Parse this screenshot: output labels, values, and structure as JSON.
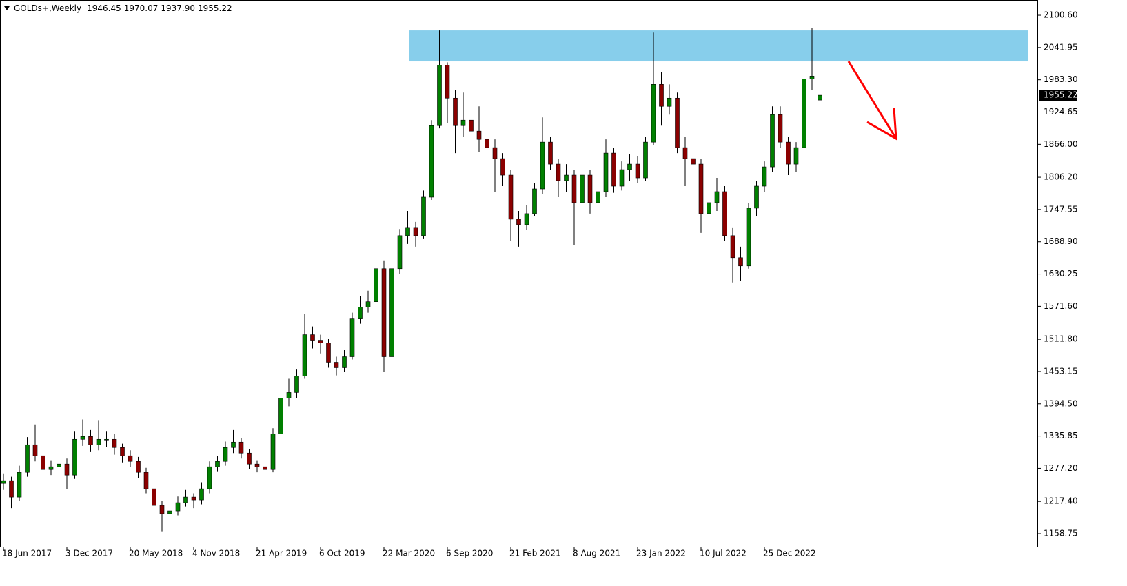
{
  "chart_data": {
    "type": "candlestick",
    "title": "GOLDs+,Weekly",
    "header_values": [
      "1946.45",
      "1970.07",
      "1937.90",
      "1955.22"
    ],
    "categories": [
      "18 Jun 2017",
      null,
      null,
      null,
      null,
      null,
      null,
      null,
      "3 Dec 2017",
      null,
      null,
      null,
      null,
      null,
      null,
      null,
      "20 May 2018",
      null,
      null,
      null,
      null,
      null,
      null,
      null,
      "4 Nov 2018",
      null,
      null,
      null,
      null,
      null,
      null,
      null,
      "21 Apr 2019",
      null,
      null,
      null,
      null,
      null,
      null,
      null,
      "6 Oct 2019",
      null,
      null,
      null,
      null,
      null,
      null,
      null,
      "22 Mar 2020",
      null,
      null,
      null,
      null,
      null,
      null,
      null,
      "6 Sep 2020",
      null,
      null,
      null,
      null,
      null,
      null,
      null,
      "21 Feb 2021",
      null,
      null,
      null,
      null,
      null,
      null,
      null,
      "8 Aug 2021",
      null,
      null,
      null,
      null,
      null,
      null,
      null,
      "23 Jan 2022",
      null,
      null,
      null,
      null,
      null,
      null,
      null,
      "10 Jul 2022",
      null,
      null,
      null,
      null,
      null,
      null,
      null,
      "25 Dec 2022",
      null,
      null,
      null,
      null,
      null,
      null,
      null
    ],
    "open": [
      1250,
      1255,
      1225,
      1270,
      1320,
      1300,
      1275,
      1280,
      1285,
      1265,
      1330,
      1335,
      1320,
      1330,
      1330,
      1315,
      1300,
      1290,
      1270,
      1240,
      1210,
      1195,
      1200,
      1215,
      1225,
      1220,
      1240,
      1280,
      1290,
      1315,
      1325,
      1305,
      1285,
      1280,
      1275,
      1340,
      1405,
      1415,
      1445,
      1520,
      1510,
      1505,
      1470,
      1460,
      1480,
      1550,
      1570,
      1580,
      1640,
      1480,
      1640,
      1700,
      1715,
      1700,
      1770,
      1900,
      2010,
      1950,
      1900,
      1910,
      1890,
      1875,
      1860,
      1840,
      1810,
      1730,
      1720,
      1740,
      1785,
      1870,
      1830,
      1800,
      1810,
      1760,
      1810,
      1760,
      1780,
      1850,
      1790,
      1820,
      1830,
      1805,
      1870,
      1975,
      1935,
      1950,
      1860,
      1840,
      1830,
      1740,
      1760,
      1780,
      1700,
      1660,
      1645,
      1750,
      1790,
      1825,
      1920,
      1870,
      1830,
      1860,
      1985,
      1946.45
    ],
    "high": [
      1268,
      1262,
      1282,
      1334,
      1357,
      1310,
      1292,
      1296,
      1295,
      1345,
      1366,
      1348,
      1365,
      1345,
      1340,
      1322,
      1310,
      1298,
      1278,
      1248,
      1218,
      1212,
      1226,
      1238,
      1232,
      1252,
      1290,
      1300,
      1326,
      1348,
      1332,
      1312,
      1292,
      1288,
      1350,
      1418,
      1440,
      1458,
      1557,
      1535,
      1520,
      1512,
      1480,
      1492,
      1560,
      1590,
      1600,
      1702,
      1655,
      1650,
      1712,
      1745,
      1725,
      1782,
      1910,
      2073,
      2015,
      1965,
      1960,
      1965,
      1935,
      1885,
      1875,
      1850,
      1820,
      1745,
      1755,
      1795,
      1915,
      1880,
      1840,
      1830,
      1820,
      1835,
      1820,
      1795,
      1875,
      1860,
      1835,
      1848,
      1845,
      1880,
      2069,
      1998,
      1975,
      1960,
      1880,
      1875,
      1840,
      1772,
      1805,
      1790,
      1715,
      1680,
      1760,
      1800,
      1835,
      1935,
      1935,
      1880,
      1870,
      1995,
      2078,
      1970.07
    ],
    "low": [
      1238,
      1205,
      1218,
      1262,
      1290,
      1262,
      1265,
      1270,
      1240,
      1258,
      1318,
      1308,
      1310,
      1316,
      1302,
      1288,
      1280,
      1260,
      1232,
      1200,
      1163,
      1184,
      1192,
      1208,
      1205,
      1212,
      1232,
      1272,
      1282,
      1305,
      1295,
      1276,
      1270,
      1266,
      1270,
      1332,
      1390,
      1405,
      1440,
      1495,
      1486,
      1460,
      1446,
      1452,
      1475,
      1540,
      1560,
      1575,
      1452,
      1470,
      1630,
      1685,
      1680,
      1695,
      1765,
      1895,
      1905,
      1850,
      1880,
      1860,
      1852,
      1835,
      1780,
      1790,
      1690,
      1680,
      1710,
      1735,
      1775,
      1820,
      1770,
      1780,
      1683,
      1750,
      1740,
      1725,
      1770,
      1778,
      1782,
      1800,
      1795,
      1800,
      1865,
      1900,
      1920,
      1850,
      1790,
      1800,
      1705,
      1690,
      1745,
      1690,
      1615,
      1618,
      1640,
      1735,
      1780,
      1815,
      1860,
      1810,
      1815,
      1850,
      1965,
      1937.9
    ],
    "close": [
      1255,
      1225,
      1270,
      1320,
      1300,
      1275,
      1280,
      1285,
      1265,
      1330,
      1335,
      1320,
      1330,
      1330,
      1315,
      1300,
      1290,
      1270,
      1240,
      1210,
      1195,
      1200,
      1215,
      1225,
      1220,
      1240,
      1280,
      1290,
      1315,
      1325,
      1305,
      1285,
      1280,
      1275,
      1340,
      1405,
      1415,
      1445,
      1520,
      1510,
      1505,
      1470,
      1460,
      1480,
      1550,
      1570,
      1580,
      1640,
      1480,
      1640,
      1700,
      1715,
      1700,
      1770,
      1900,
      2010,
      1950,
      1900,
      1910,
      1890,
      1875,
      1860,
      1840,
      1810,
      1730,
      1720,
      1740,
      1785,
      1870,
      1830,
      1800,
      1810,
      1760,
      1810,
      1760,
      1780,
      1850,
      1790,
      1820,
      1830,
      1805,
      1870,
      1975,
      1935,
      1950,
      1860,
      1840,
      1830,
      1740,
      1760,
      1780,
      1700,
      1660,
      1645,
      1750,
      1790,
      1825,
      1920,
      1870,
      1830,
      1860,
      1985,
      1990,
      1955.22
    ],
    "up_color": "#008000",
    "down_color": "#8b0000",
    "wick_color": "#000000",
    "zone": {
      "low": 2016.7,
      "high": 2073,
      "color": "#87ceeb"
    },
    "ylim": [
      1134.95,
      2128.2
    ],
    "yticks": [
      {
        "value": 2100.6,
        "label": "2100.60"
      },
      {
        "value": 2041.95,
        "label": "2041.95"
      },
      {
        "value": 1983.3,
        "label": "1983.30"
      },
      {
        "value": 1924.65,
        "label": "1924.65"
      },
      {
        "value": 1866,
        "label": "1866.00"
      },
      {
        "value": 1806.2,
        "label": "1806.20"
      },
      {
        "value": 1747.55,
        "label": "1747.55"
      },
      {
        "value": 1688.9,
        "label": "1688.90"
      },
      {
        "value": 1630.25,
        "label": "1630.25"
      },
      {
        "value": 1571.6,
        "label": "1571.60"
      },
      {
        "value": 1511.8,
        "label": "1511.80"
      },
      {
        "value": 1453.15,
        "label": "1453.15"
      },
      {
        "value": 1394.5,
        "label": "1394.50"
      },
      {
        "value": 1335.85,
        "label": "1335.85"
      },
      {
        "value": 1277.2,
        "label": "1277.20"
      },
      {
        "value": 1217.4,
        "label": "1217.40"
      },
      {
        "value": 1158.75,
        "label": "1158.75"
      }
    ]
  }
}
